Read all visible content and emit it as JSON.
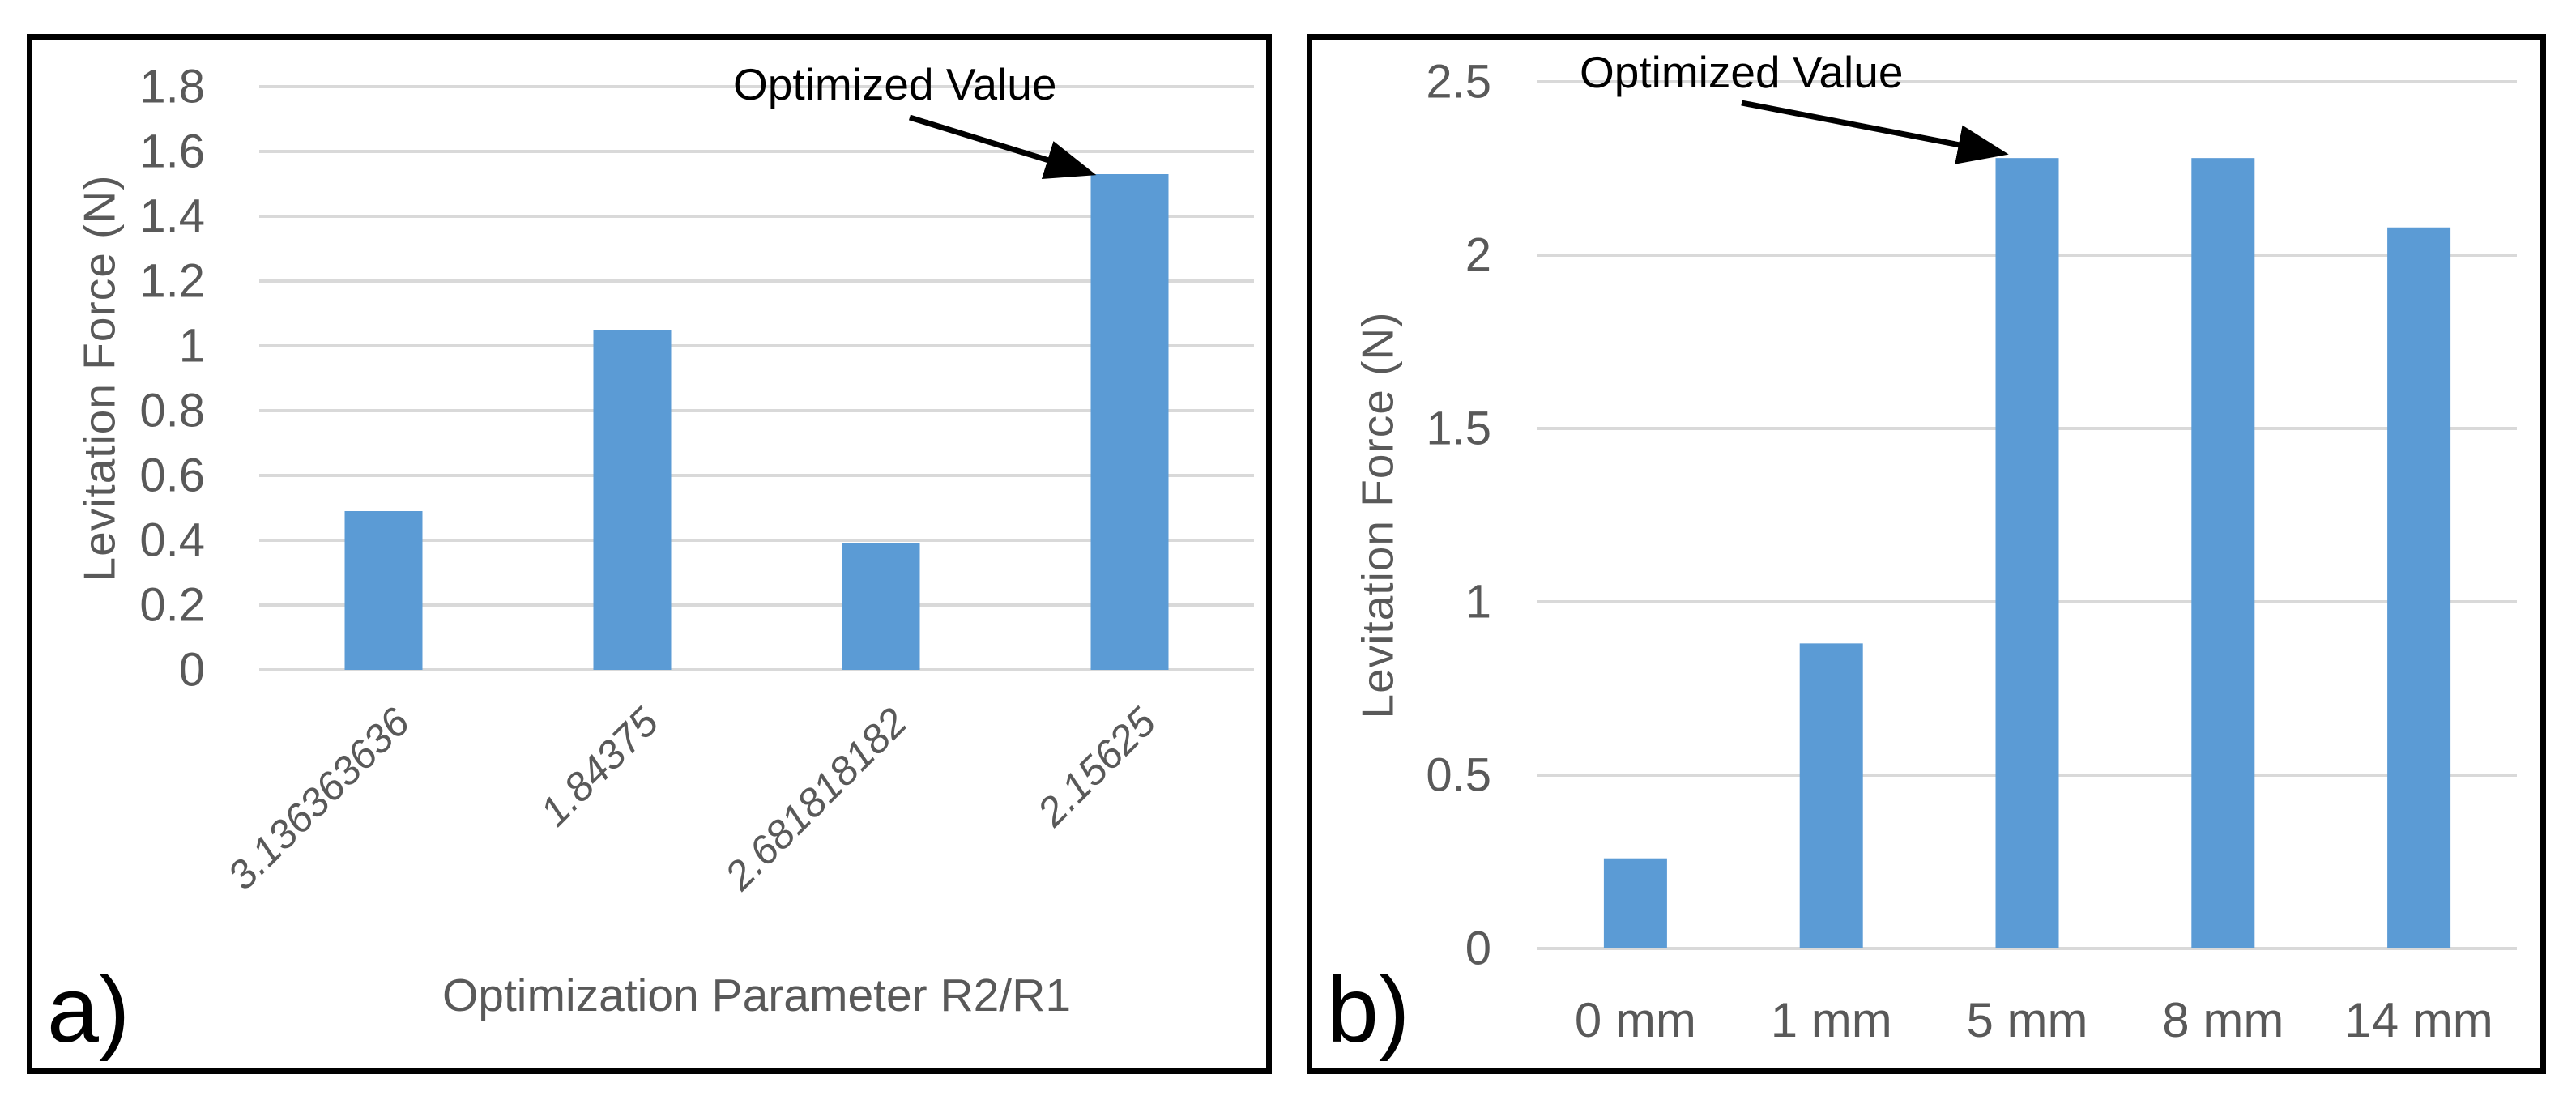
{
  "figure": {
    "panel_labels": [
      "a)",
      "b)"
    ]
  },
  "chart_data": [
    {
      "type": "bar",
      "panel": "a",
      "title": "",
      "categories": [
        "3.136363636",
        "1.84375",
        "2.681818182",
        "2.15625"
      ],
      "values": [
        0.49,
        1.05,
        0.39,
        1.53
      ],
      "ylabel": "Levitation Force (N)",
      "xlabel": "Optimization Parameter R2/R1",
      "ylim": [
        0,
        1.8
      ],
      "ytick_step": 0.2,
      "yticks": [
        "0",
        "0.2",
        "0.4",
        "0.6",
        "0.8",
        "1",
        "1.2",
        "1.4",
        "1.6",
        "1.8"
      ],
      "grid": true,
      "legend": false,
      "annotation": {
        "text": "Optimized Value",
        "target_category": "2.15625",
        "target_index": 3
      },
      "bar_color": "#5B9BD5",
      "grid_color": "#D9D9D9",
      "axis_text_color": "#595959"
    },
    {
      "type": "bar",
      "panel": "b",
      "title": "",
      "categories": [
        "0 mm",
        "1 mm",
        "5 mm",
        "8 mm",
        "14 mm"
      ],
      "values": [
        0.26,
        0.88,
        2.28,
        2.28,
        2.08
      ],
      "ylabel": "Levitation Force (N)",
      "xlabel": "",
      "ylim": [
        0,
        2.5
      ],
      "ytick_step": 0.5,
      "yticks": [
        "0",
        "0.5",
        "1",
        "1.5",
        "2",
        "2.5"
      ],
      "grid": true,
      "legend": false,
      "annotation": {
        "text": "Optimized Value",
        "target_category": "5 mm",
        "target_index": 2
      },
      "bar_color": "#5B9BD5",
      "grid_color": "#D9D9D9",
      "axis_text_color": "#595959"
    }
  ]
}
